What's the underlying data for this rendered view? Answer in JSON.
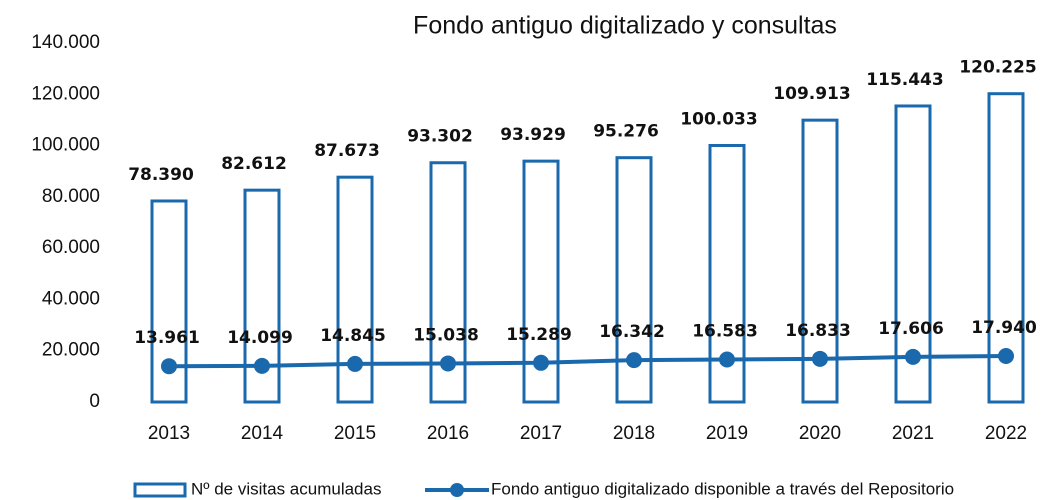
{
  "chart_data": {
    "type": "combo",
    "title": "Fondo antiguo digitalizado y consultas",
    "categories": [
      "2013",
      "2014",
      "2015",
      "2016",
      "2017",
      "2018",
      "2019",
      "2020",
      "2021",
      "2022"
    ],
    "ylim": [
      0,
      140000
    ],
    "yticks": [
      0,
      {
        "value": 20000,
        "label": "20.000"
      },
      {
        "value": 40000,
        "label": "40.000"
      },
      {
        "value": 60000,
        "label": "60.000"
      },
      {
        "value": 80000,
        "label": "80.000"
      },
      {
        "value": 100000,
        "label": "100.000"
      },
      {
        "value": 120000,
        "label": "120.000"
      },
      {
        "value": 140000,
        "label": "140.000"
      }
    ],
    "grid": false,
    "legend": "bottom",
    "series": [
      {
        "name": "Nº de visitas acumuladas",
        "type": "bar",
        "color": "#1b69ad",
        "values": [
          78390,
          82612,
          87673,
          93302,
          93929,
          95276,
          100033,
          109913,
          115443,
          120225
        ],
        "value_labels": [
          "78.390",
          "82.612",
          "87.673",
          "93.302",
          "93.929",
          "95.276",
          "100.033",
          "109.913",
          "115.443",
          "120.225"
        ]
      },
      {
        "name": "Fondo antiguo digitalizado disponible a través del Repositorio",
        "type": "line",
        "color": "#1b69ad",
        "values": [
          13961,
          14099,
          14845,
          15038,
          15289,
          16342,
          16583,
          16833,
          17606,
          17940
        ],
        "value_labels": [
          "13.961",
          "14.099",
          "14.845",
          "15.038",
          "15.289",
          "16.342",
          "16.583",
          "16.833",
          "17.606",
          "17.940"
        ]
      }
    ]
  }
}
